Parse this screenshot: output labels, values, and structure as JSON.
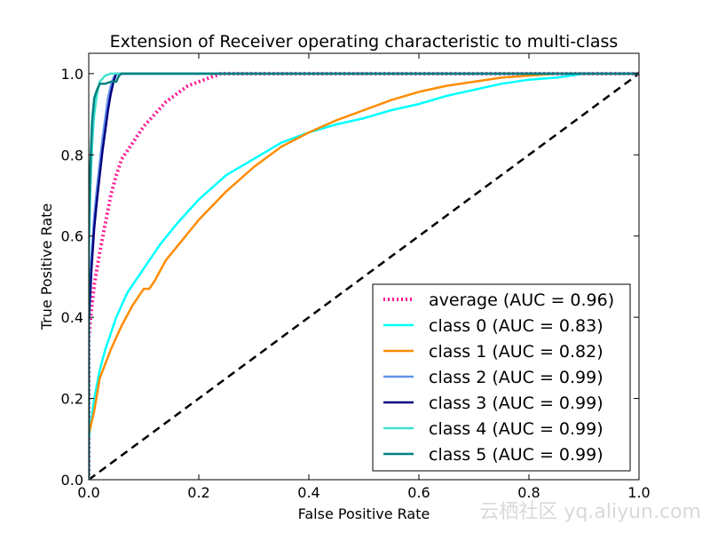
{
  "chart_data": {
    "type": "line",
    "title": "Extension of Receiver operating characteristic to multi-class",
    "xlabel": "False Positive Rate",
    "ylabel": "True Positive Rate",
    "xlim": [
      0.0,
      1.0
    ],
    "ylim": [
      0.0,
      1.05
    ],
    "x_ticks": [
      0.0,
      0.2,
      0.4,
      0.6,
      0.8,
      1.0
    ],
    "y_ticks": [
      0.0,
      0.2,
      0.4,
      0.6,
      0.8,
      1.0
    ],
    "x_tick_labels": [
      "0.0",
      "0.2",
      "0.4",
      "0.6",
      "0.8",
      "1.0"
    ],
    "y_tick_labels": [
      "0.0",
      "0.2",
      "0.4",
      "0.6",
      "0.8",
      "1.0"
    ],
    "grid": false,
    "legend_position": "lower-right",
    "series": [
      {
        "name": "average (AUC = 0.96)",
        "color": "#ff1493",
        "style": "dotted",
        "x": [
          0.0,
          0.0,
          0.005,
          0.01,
          0.02,
          0.03,
          0.04,
          0.05,
          0.06,
          0.08,
          0.1,
          0.12,
          0.14,
          0.16,
          0.18,
          0.2,
          0.22,
          0.24,
          1.0
        ],
        "y": [
          0.0,
          0.35,
          0.42,
          0.48,
          0.56,
          0.63,
          0.7,
          0.75,
          0.79,
          0.83,
          0.87,
          0.9,
          0.93,
          0.95,
          0.97,
          0.98,
          0.99,
          1.0,
          1.0
        ]
      },
      {
        "name": "class 0 (AUC = 0.83)",
        "color": "#00ffff",
        "style": "solid",
        "x": [
          0.0,
          0.0,
          0.01,
          0.02,
          0.03,
          0.05,
          0.07,
          0.1,
          0.13,
          0.16,
          0.2,
          0.25,
          0.3,
          0.35,
          0.4,
          0.45,
          0.5,
          0.55,
          0.6,
          0.65,
          0.7,
          0.75,
          0.8,
          0.85,
          0.9,
          0.95,
          1.0
        ],
        "y": [
          0.0,
          0.1,
          0.2,
          0.27,
          0.32,
          0.4,
          0.46,
          0.52,
          0.58,
          0.63,
          0.69,
          0.75,
          0.79,
          0.83,
          0.855,
          0.875,
          0.89,
          0.91,
          0.925,
          0.945,
          0.96,
          0.975,
          0.985,
          0.99,
          1.0,
          1.0,
          1.0
        ]
      },
      {
        "name": "class 1 (AUC = 0.82)",
        "color": "#ff8c00",
        "style": "solid",
        "x": [
          0.0,
          0.0,
          0.01,
          0.02,
          0.04,
          0.06,
          0.08,
          0.1,
          0.11,
          0.12,
          0.14,
          0.17,
          0.2,
          0.25,
          0.3,
          0.35,
          0.4,
          0.45,
          0.5,
          0.55,
          0.6,
          0.65,
          0.7,
          0.75,
          0.8,
          0.85,
          0.9,
          1.0
        ],
        "y": [
          0.0,
          0.11,
          0.17,
          0.25,
          0.32,
          0.38,
          0.43,
          0.47,
          0.47,
          0.49,
          0.54,
          0.59,
          0.64,
          0.71,
          0.77,
          0.82,
          0.855,
          0.885,
          0.91,
          0.935,
          0.955,
          0.97,
          0.98,
          0.99,
          0.995,
          1.0,
          1.0,
          1.0
        ]
      },
      {
        "name": "class 2 (AUC = 0.99)",
        "color": "#6495ed",
        "style": "solid",
        "x": [
          0.0,
          0.0,
          0.005,
          0.01,
          0.015,
          0.02,
          0.025,
          0.03,
          0.035,
          0.04,
          0.045,
          0.05,
          1.0
        ],
        "y": [
          0.0,
          0.4,
          0.55,
          0.65,
          0.72,
          0.78,
          0.84,
          0.89,
          0.94,
          0.97,
          0.99,
          1.0,
          1.0
        ]
      },
      {
        "name": "class 3 (AUC = 0.99)",
        "color": "#000080",
        "style": "solid",
        "x": [
          0.0,
          0.0,
          0.005,
          0.01,
          0.015,
          0.02,
          0.025,
          0.03,
          0.035,
          0.04,
          0.045,
          0.05,
          0.06,
          1.0
        ],
        "y": [
          0.0,
          0.38,
          0.52,
          0.62,
          0.69,
          0.75,
          0.81,
          0.86,
          0.91,
          0.95,
          0.98,
          1.0,
          1.0,
          1.0
        ]
      },
      {
        "name": "class 4 (AUC = 0.99)",
        "color": "#40e0d0",
        "style": "solid",
        "x": [
          0.0,
          0.0,
          0.003,
          0.006,
          0.01,
          0.015,
          0.02,
          0.03,
          0.04,
          1.0
        ],
        "y": [
          0.0,
          0.55,
          0.72,
          0.82,
          0.9,
          0.95,
          0.98,
          0.995,
          1.0,
          1.0
        ]
      },
      {
        "name": "class 5 (AUC = 0.99)",
        "color": "#008080",
        "style": "solid",
        "x": [
          0.0,
          0.0,
          0.003,
          0.006,
          0.01,
          0.015,
          0.02,
          0.03,
          0.04,
          0.05,
          0.055,
          0.06,
          0.07,
          1.0
        ],
        "y": [
          0.0,
          0.6,
          0.78,
          0.88,
          0.94,
          0.96,
          0.975,
          0.975,
          0.98,
          0.98,
          0.995,
          1.0,
          1.0,
          1.0
        ]
      }
    ],
    "reference_line": {
      "color": "#000000",
      "style": "dashed",
      "x": [
        0.0,
        1.0
      ],
      "y": [
        0.0,
        1.0
      ]
    }
  },
  "watermark": {
    "text": "云栖社区 yq.aliyun.com"
  }
}
